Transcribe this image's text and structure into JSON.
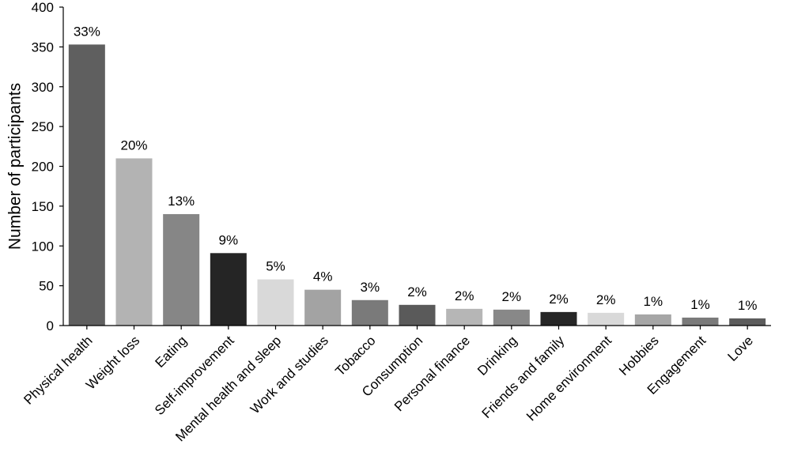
{
  "chart_data": {
    "type": "bar",
    "title": "",
    "xlabel": "",
    "ylabel": "Number of participants",
    "ylim": [
      0,
      400
    ],
    "yticks": [
      0,
      50,
      100,
      150,
      200,
      250,
      300,
      350,
      400
    ],
    "grid": false,
    "categories": [
      "Physical health",
      "Weight loss",
      "Eating",
      "Self-improvement",
      "Mental health and sleep",
      "Work and studies",
      "Tobacco",
      "Consumption",
      "Personal finance",
      "Drinking",
      "Friends and family",
      "Home environment",
      "Hobbies",
      "Engagement",
      "Love"
    ],
    "values": [
      353,
      210,
      140,
      91,
      58,
      45,
      32,
      26,
      21,
      20,
      17,
      16,
      14,
      10,
      9
    ],
    "data_labels": [
      "33%",
      "20%",
      "13%",
      "9%",
      "5%",
      "4%",
      "3%",
      "2%",
      "2%",
      "2%",
      "2%",
      "2%",
      "1%",
      "1%",
      "1%"
    ],
    "bar_colors": [
      "#5f5f5f",
      "#b3b3b3",
      "#868686",
      "#252525",
      "#d9d9d9",
      "#a3a3a3",
      "#7a7a7a",
      "#5a5a5a",
      "#b6b6b6",
      "#888888",
      "#262626",
      "#d9d9d9",
      "#a6a6a6",
      "#7a7a7a",
      "#5c5c5c"
    ]
  }
}
